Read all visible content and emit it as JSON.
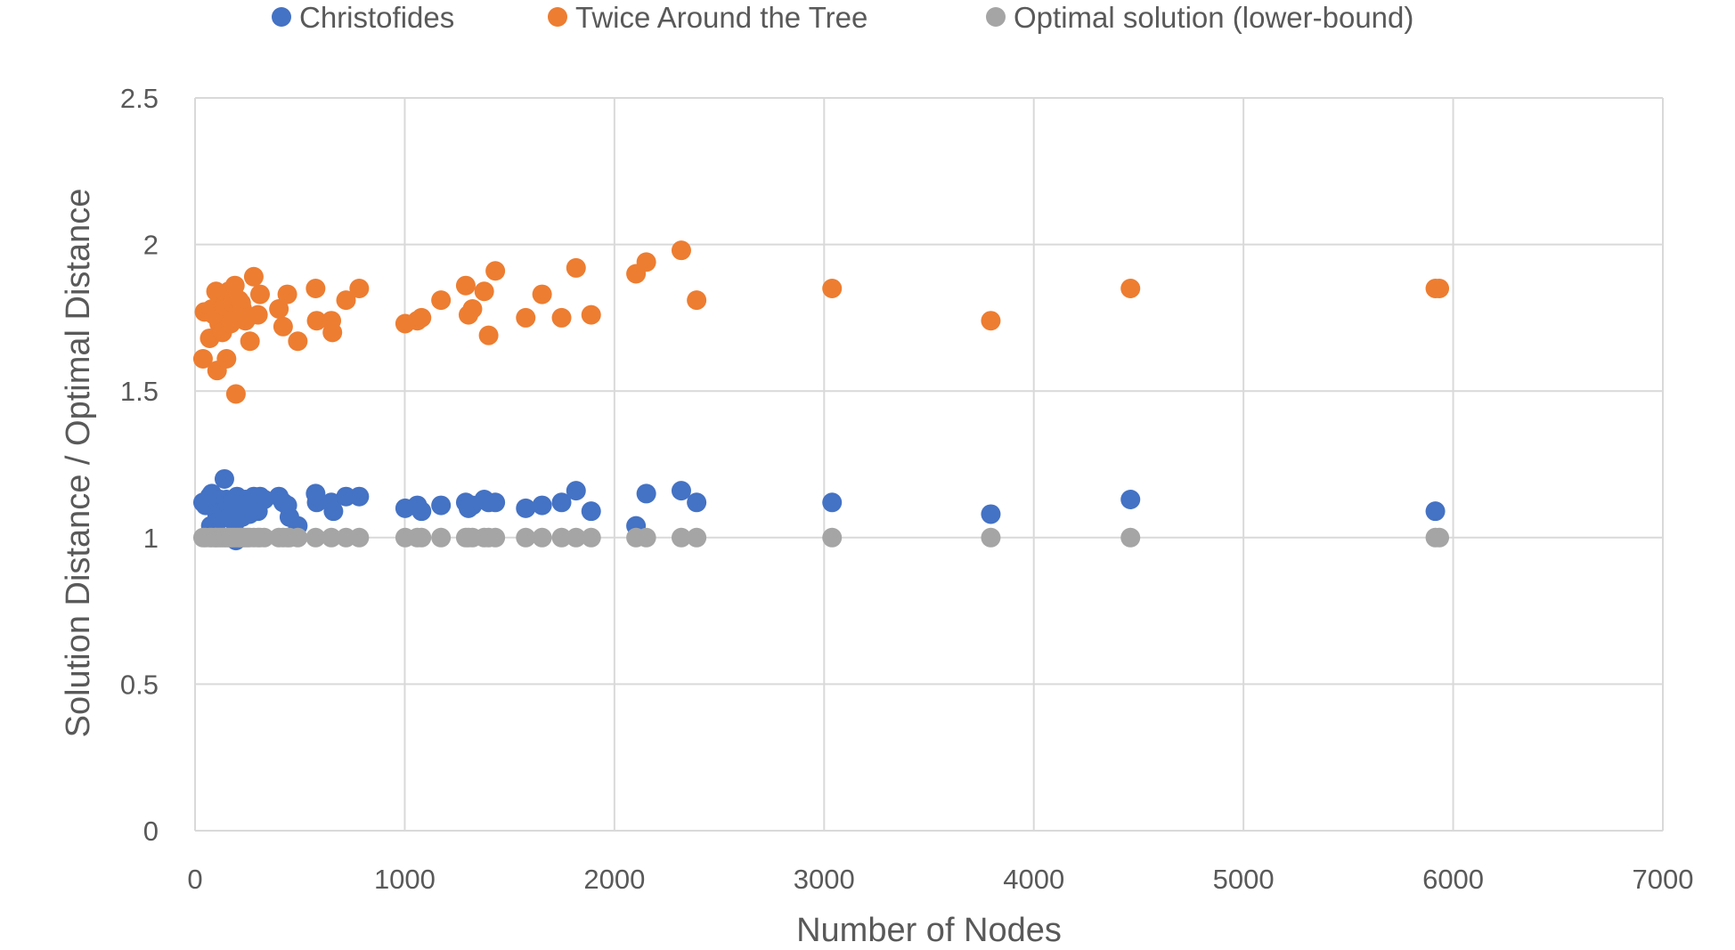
{
  "chart_data": {
    "type": "scatter",
    "title": "",
    "xlabel": "Number of Nodes",
    "ylabel": "Solution Distance / Optimal Distance",
    "xlim": [
      0,
      7000
    ],
    "ylim": [
      0,
      2.5
    ],
    "x_ticks": [
      0,
      1000,
      2000,
      3000,
      4000,
      5000,
      6000,
      7000
    ],
    "y_ticks": [
      0,
      0.5,
      1,
      1.5,
      2,
      2.5
    ],
    "grid": true,
    "legend_position": "top",
    "series": [
      {
        "name": "Christofides",
        "color": "#4472C4",
        "points": [
          [
            38,
            1.12
          ],
          [
            50,
            1.11
          ],
          [
            70,
            1.14
          ],
          [
            75,
            1.04
          ],
          [
            80,
            1.15
          ],
          [
            95,
            1.1
          ],
          [
            100,
            1.13
          ],
          [
            105,
            1.08
          ],
          [
            110,
            1.12
          ],
          [
            115,
            1.06
          ],
          [
            120,
            1.13
          ],
          [
            130,
            1.09
          ],
          [
            140,
            1.2
          ],
          [
            150,
            1.13
          ],
          [
            152,
            1.1
          ],
          [
            160,
            1.11
          ],
          [
            170,
            1.07
          ],
          [
            180,
            1.12
          ],
          [
            190,
            1.05
          ],
          [
            195,
            0.99
          ],
          [
            200,
            1.14
          ],
          [
            210,
            1.1
          ],
          [
            220,
            1.12
          ],
          [
            225,
            1.07
          ],
          [
            230,
            1.09
          ],
          [
            240,
            1.13
          ],
          [
            250,
            1.11
          ],
          [
            260,
            1.08
          ],
          [
            280,
            1.14
          ],
          [
            290,
            1.12
          ],
          [
            300,
            1.09
          ],
          [
            310,
            1.14
          ],
          [
            330,
            1.13
          ],
          [
            400,
            1.14
          ],
          [
            420,
            1.12
          ],
          [
            440,
            1.11
          ],
          [
            450,
            1.07
          ],
          [
            490,
            1.04
          ],
          [
            575,
            1.15
          ],
          [
            580,
            1.12
          ],
          [
            650,
            1.12
          ],
          [
            660,
            1.09
          ],
          [
            720,
            1.14
          ],
          [
            783,
            1.14
          ],
          [
            1002,
            1.1
          ],
          [
            1060,
            1.11
          ],
          [
            1080,
            1.09
          ],
          [
            1173,
            1.11
          ],
          [
            1291,
            1.12
          ],
          [
            1304,
            1.1
          ],
          [
            1323,
            1.11
          ],
          [
            1379,
            1.13
          ],
          [
            1400,
            1.12
          ],
          [
            1432,
            1.12
          ],
          [
            1577,
            1.1
          ],
          [
            1655,
            1.11
          ],
          [
            1748,
            1.12
          ],
          [
            1817,
            1.16
          ],
          [
            1889,
            1.09
          ],
          [
            2103,
            1.04
          ],
          [
            2152,
            1.15
          ],
          [
            2319,
            1.16
          ],
          [
            2392,
            1.12
          ],
          [
            3038,
            1.12
          ],
          [
            3795,
            1.08
          ],
          [
            4461,
            1.13
          ],
          [
            5915,
            1.09
          ]
        ]
      },
      {
        "name": "Twice Around the Tree",
        "color": "#ED7D31",
        "points": [
          [
            38,
            1.61
          ],
          [
            45,
            1.77
          ],
          [
            70,
            1.68
          ],
          [
            80,
            1.78
          ],
          [
            90,
            1.76
          ],
          [
            100,
            1.84
          ],
          [
            105,
            1.57
          ],
          [
            115,
            1.73
          ],
          [
            120,
            1.82
          ],
          [
            130,
            1.7
          ],
          [
            140,
            1.79
          ],
          [
            150,
            1.61
          ],
          [
            160,
            1.84
          ],
          [
            170,
            1.73
          ],
          [
            180,
            1.8
          ],
          [
            190,
            1.86
          ],
          [
            195,
            1.49
          ],
          [
            200,
            1.76
          ],
          [
            210,
            1.81
          ],
          [
            220,
            1.8
          ],
          [
            225,
            1.78
          ],
          [
            240,
            1.74
          ],
          [
            250,
            1.75
          ],
          [
            262,
            1.67
          ],
          [
            280,
            1.89
          ],
          [
            300,
            1.76
          ],
          [
            310,
            1.83
          ],
          [
            400,
            1.78
          ],
          [
            420,
            1.72
          ],
          [
            440,
            1.83
          ],
          [
            490,
            1.67
          ],
          [
            575,
            1.85
          ],
          [
            580,
            1.74
          ],
          [
            650,
            1.74
          ],
          [
            655,
            1.7
          ],
          [
            720,
            1.81
          ],
          [
            783,
            1.85
          ],
          [
            1002,
            1.73
          ],
          [
            1060,
            1.74
          ],
          [
            1080,
            1.75
          ],
          [
            1173,
            1.81
          ],
          [
            1291,
            1.86
          ],
          [
            1304,
            1.76
          ],
          [
            1323,
            1.78
          ],
          [
            1379,
            1.84
          ],
          [
            1400,
            1.69
          ],
          [
            1432,
            1.91
          ],
          [
            1577,
            1.75
          ],
          [
            1655,
            1.83
          ],
          [
            1748,
            1.75
          ],
          [
            1817,
            1.92
          ],
          [
            1889,
            1.76
          ],
          [
            2103,
            1.9
          ],
          [
            2152,
            1.94
          ],
          [
            2319,
            1.98
          ],
          [
            2392,
            1.81
          ],
          [
            3038,
            1.85
          ],
          [
            3795,
            1.74
          ],
          [
            4461,
            1.85
          ],
          [
            5915,
            1.85
          ],
          [
            5934,
            1.85
          ]
        ]
      },
      {
        "name": "Optimal solution (lower-bound)",
        "color": "#A5A5A5",
        "points": [
          [
            38,
            1
          ],
          [
            50,
            1
          ],
          [
            70,
            1
          ],
          [
            80,
            1
          ],
          [
            95,
            1
          ],
          [
            100,
            1
          ],
          [
            110,
            1
          ],
          [
            120,
            1
          ],
          [
            130,
            1
          ],
          [
            140,
            1
          ],
          [
            150,
            1
          ],
          [
            160,
            1
          ],
          [
            170,
            1
          ],
          [
            180,
            1
          ],
          [
            190,
            1
          ],
          [
            200,
            1
          ],
          [
            210,
            1
          ],
          [
            220,
            1
          ],
          [
            230,
            1
          ],
          [
            240,
            1
          ],
          [
            250,
            1
          ],
          [
            260,
            1
          ],
          [
            280,
            1
          ],
          [
            300,
            1
          ],
          [
            310,
            1
          ],
          [
            330,
            1
          ],
          [
            400,
            1
          ],
          [
            420,
            1
          ],
          [
            440,
            1
          ],
          [
            450,
            1
          ],
          [
            490,
            1
          ],
          [
            575,
            1
          ],
          [
            650,
            1
          ],
          [
            720,
            1
          ],
          [
            783,
            1
          ],
          [
            1002,
            1
          ],
          [
            1060,
            1
          ],
          [
            1080,
            1
          ],
          [
            1173,
            1
          ],
          [
            1291,
            1
          ],
          [
            1304,
            1
          ],
          [
            1323,
            1
          ],
          [
            1379,
            1
          ],
          [
            1400,
            1
          ],
          [
            1432,
            1
          ],
          [
            1577,
            1
          ],
          [
            1655,
            1
          ],
          [
            1748,
            1
          ],
          [
            1817,
            1
          ],
          [
            1889,
            1
          ],
          [
            2103,
            1
          ],
          [
            2152,
            1
          ],
          [
            2319,
            1
          ],
          [
            2392,
            1
          ],
          [
            3038,
            1
          ],
          [
            3795,
            1
          ],
          [
            4461,
            1
          ],
          [
            5915,
            1
          ],
          [
            5934,
            1
          ]
        ]
      }
    ]
  }
}
